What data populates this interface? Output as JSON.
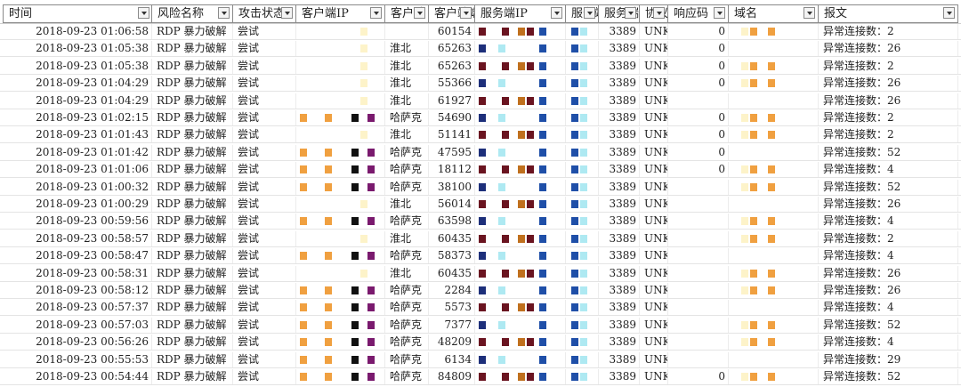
{
  "headers": [
    "时间",
    "风险名称",
    "攻击状态",
    "客户端IP",
    "客户端",
    "客户端端口",
    "服务端IP",
    "服务端",
    "服务端口",
    "协议",
    "响应码",
    "域名",
    "报文"
  ],
  "rows": [
    {
      "time": "2018-09-23 01:06:58",
      "risk": "RDP 暴力破解",
      "status": "尝试",
      "city": "",
      "cport": "60154",
      "sport": "3389",
      "proto": "UNKN",
      "code": "0",
      "msg": "异常连接数：2"
    },
    {
      "time": "2018-09-23 01:05:38",
      "risk": "RDP 暴力破解",
      "status": "尝试",
      "city": "淮北",
      "cport": "65263",
      "sport": "3389",
      "proto": "UNKN",
      "code": "0",
      "msg": "异常连接数：26"
    },
    {
      "time": "2018-09-23 01:05:38",
      "risk": "RDP 暴力破解",
      "status": "尝试",
      "city": "淮北",
      "cport": "65263",
      "sport": "3389",
      "proto": "UNKN",
      "code": "0",
      "msg": "异常连接数：2"
    },
    {
      "time": "2018-09-23 01:04:29",
      "risk": "RDP 暴力破解",
      "status": "尝试",
      "city": "淮北",
      "cport": "55366",
      "sport": "3389",
      "proto": "UNKN",
      "code": "0",
      "msg": "异常连接数：26"
    },
    {
      "time": "2018-09-23 01:04:29",
      "risk": "RDP 暴力破解",
      "status": "尝试",
      "city": "淮北",
      "cport": "61927",
      "sport": "3389",
      "proto": "UNKN",
      "code": "",
      "msg": "异常连接数：26"
    },
    {
      "time": "2018-09-23 01:02:15",
      "risk": "RDP 暴力破解",
      "status": "尝试",
      "city": "哈萨克",
      "cport": "54690",
      "sport": "3389",
      "proto": "UNKN",
      "code": "0",
      "msg": "异常连接数：2"
    },
    {
      "time": "2018-09-23 01:01:43",
      "risk": "RDP 暴力破解",
      "status": "尝试",
      "city": "淮北",
      "cport": "51141",
      "sport": "3389",
      "proto": "UNKN",
      "code": "0",
      "msg": "异常连接数：2"
    },
    {
      "time": "2018-09-23 01:01:42",
      "risk": "RDP 暴力破解",
      "status": "尝试",
      "city": "哈萨克",
      "cport": "47595",
      "sport": "3389",
      "proto": "UNKN",
      "code": "0",
      "msg": "异常连接数：52"
    },
    {
      "time": "2018-09-23 01:01:06",
      "risk": "RDP 暴力破解",
      "status": "尝试",
      "city": "哈萨克",
      "cport": "18112",
      "sport": "3389",
      "proto": "UNKN",
      "code": "0",
      "msg": "异常连接数：4"
    },
    {
      "time": "2018-09-23 01:00:32",
      "risk": "RDP 暴力破解",
      "status": "尝试",
      "city": "哈萨克",
      "cport": "38100",
      "sport": "3389",
      "proto": "UNKN",
      "code": "",
      "msg": "异常连接数：52"
    },
    {
      "time": "2018-09-23 01:00:29",
      "risk": "RDP 暴力破解",
      "status": "尝试",
      "city": "淮北",
      "cport": "56014",
      "sport": "3389",
      "proto": "UNKN",
      "code": "",
      "msg": "异常连接数：26"
    },
    {
      "time": "2018-09-23 00:59:56",
      "risk": "RDP 暴力破解",
      "status": "尝试",
      "city": "哈萨克",
      "cport": "63598",
      "sport": "3389",
      "proto": "UNKN",
      "code": "",
      "msg": "异常连接数：4"
    },
    {
      "time": "2018-09-23 00:58:57",
      "risk": "RDP 暴力破解",
      "status": "尝试",
      "city": "淮北",
      "cport": "60435",
      "sport": "3389",
      "proto": "UNKN",
      "code": "",
      "msg": "异常连接数：2"
    },
    {
      "time": "2018-09-23 00:58:47",
      "risk": "RDP 暴力破解",
      "status": "尝试",
      "city": "哈萨克",
      "cport": "58373",
      "sport": "3389",
      "proto": "UNKN",
      "code": "",
      "msg": "异常连接数：4"
    },
    {
      "time": "2018-09-23 00:58:31",
      "risk": "RDP 暴力破解",
      "status": "尝试",
      "city": "淮北",
      "cport": "60435",
      "sport": "3389",
      "proto": "UNKN",
      "code": "",
      "msg": "异常连接数：26"
    },
    {
      "time": "2018-09-23 00:58:12",
      "risk": "RDP 暴力破解",
      "status": "尝试",
      "city": "哈萨克",
      "cport": "2284",
      "sport": "3389",
      "proto": "UNKN",
      "code": "",
      "msg": "异常连接数：26"
    },
    {
      "time": "2018-09-23 00:57:37",
      "risk": "RDP 暴力破解",
      "status": "尝试",
      "city": "哈萨克",
      "cport": "5573",
      "sport": "3389",
      "proto": "UNKN",
      "code": "",
      "msg": "异常连接数：4"
    },
    {
      "time": "2018-09-23 00:57:03",
      "risk": "RDP 暴力破解",
      "status": "尝试",
      "city": "哈萨克",
      "cport": "7377",
      "sport": "3389",
      "proto": "UNKN",
      "code": "",
      "msg": "异常连接数：52"
    },
    {
      "time": "2018-09-23 00:56:26",
      "risk": "RDP 暴力破解",
      "status": "尝试",
      "city": "哈萨克",
      "cport": "48209",
      "sport": "3389",
      "proto": "UNKN",
      "code": "",
      "msg": "异常连接数：4"
    },
    {
      "time": "2018-09-23 00:55:53",
      "risk": "RDP 暴力破解",
      "status": "尝试",
      "city": "哈萨克",
      "cport": "6134",
      "sport": "3389",
      "proto": "UNKN",
      "code": "",
      "msg": "异常连接数：29"
    },
    {
      "time": "2018-09-23 00:54:44",
      "risk": "RDP 暴力破解",
      "status": "尝试",
      "city": "哈萨克",
      "cport": "84809",
      "sport": "3389",
      "proto": "UNKN",
      "code": "0",
      "msg": "异常连接数：52"
    }
  ],
  "colors": {
    "orange": "#f0a040",
    "yellow": "#f9e27a",
    "pale": "#fdf3c9",
    "black": "#111111",
    "purple": "#7a1a6e",
    "maroon": "#6a1420",
    "blue": "#1f4fa8",
    "cyan": "#aee9f2",
    "navy": "#1d2f7a",
    "brown": "#c0701e"
  }
}
